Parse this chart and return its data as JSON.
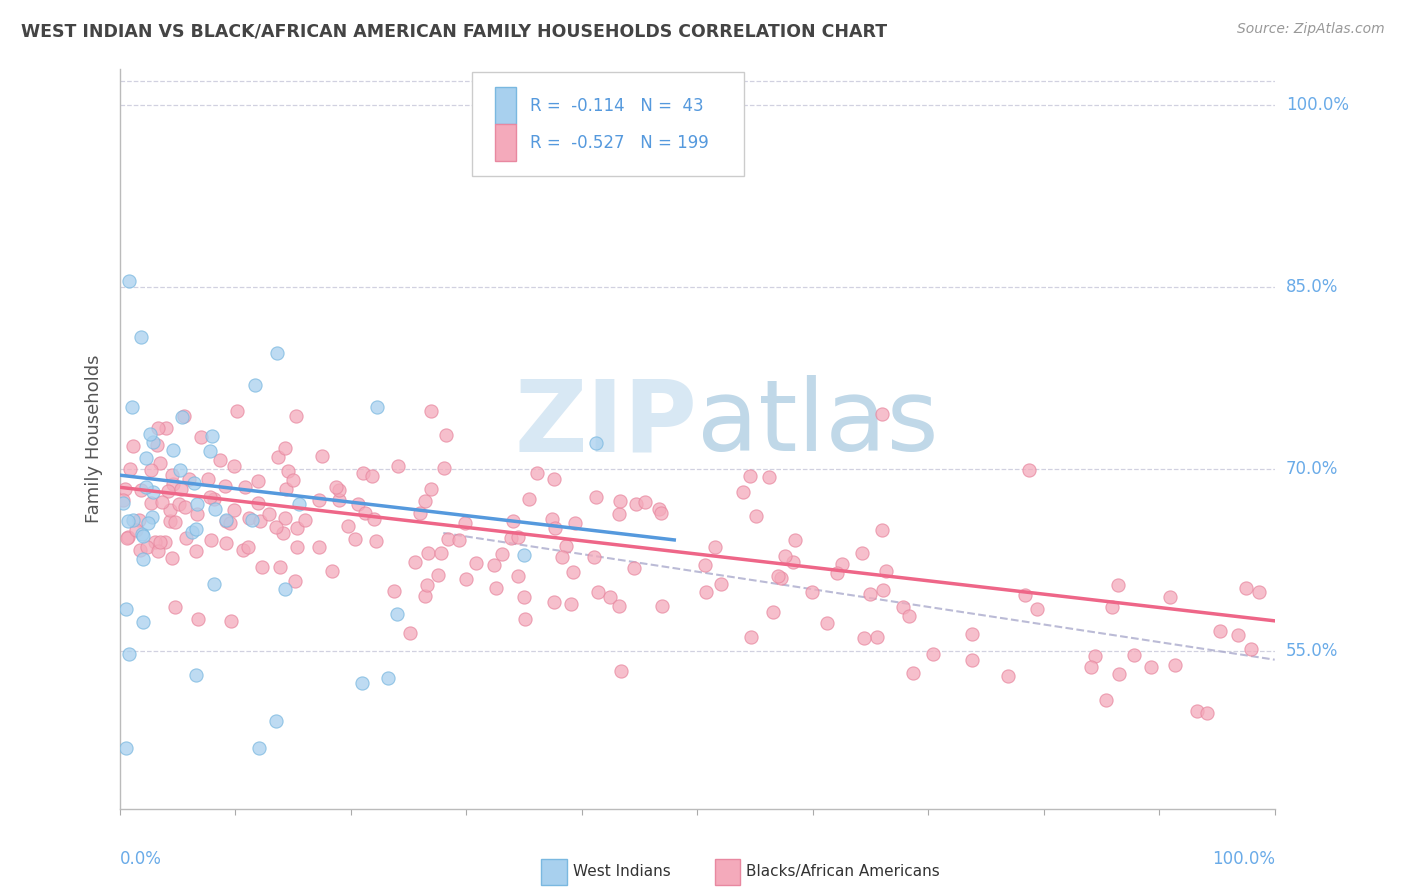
{
  "title": "WEST INDIAN VS BLACK/AFRICAN AMERICAN FAMILY HOUSEHOLDS CORRELATION CHART",
  "source": "Source: ZipAtlas.com",
  "ylabel": "Family Households",
  "ytick_labels": [
    "55.0%",
    "70.0%",
    "85.0%",
    "100.0%"
  ],
  "ytick_values": [
    0.55,
    0.7,
    0.85,
    1.0
  ],
  "xmin": 0.0,
  "xmax": 1.0,
  "ymin": 0.42,
  "ymax": 1.03,
  "color_blue_fill": "#A8D0EE",
  "color_blue_edge": "#7AB8E0",
  "color_pink_fill": "#F4AABB",
  "color_pink_edge": "#E888A0",
  "color_blue_line": "#5599DD",
  "color_pink_line": "#EE6688",
  "color_dashed": "#AAAACC",
  "watermark_color": "#D8E8F4",
  "grid_color": "#CCCCDD",
  "ytick_color": "#6AABE8",
  "xlabel_color": "#6AABE8",
  "legend_text_color": "#5599DD",
  "title_color": "#444444",
  "source_color": "#999999"
}
